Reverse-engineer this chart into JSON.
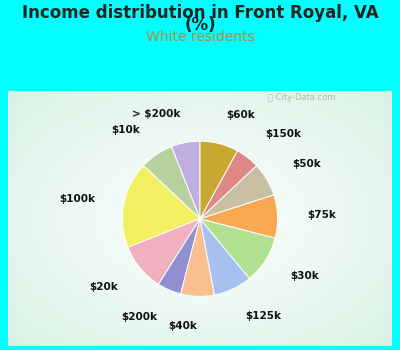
{
  "title_line1": "Income distribution in Front Royal, VA",
  "title_line2": "(%)",
  "subtitle": "White residents",
  "title_color": "#222222",
  "subtitle_color": "#b08840",
  "outer_bg": "#00ffff",
  "chart_bg": "#e8f5f0",
  "labels": [
    "> $200k",
    "$10k",
    "$100k",
    "$20k",
    "$200k",
    "$40k",
    "$125k",
    "$30k",
    "$75k",
    "$50k",
    "$150k",
    "$60k"
  ],
  "values": [
    6,
    7,
    18,
    10,
    5,
    7,
    8,
    10,
    9,
    7,
    5,
    8
  ],
  "colors": [
    "#c0aee0",
    "#b8d0a0",
    "#f0f060",
    "#f0b0c0",
    "#9090d0",
    "#f8c090",
    "#a8c0f0",
    "#b0e090",
    "#f8a850",
    "#c8c0a0",
    "#e08888",
    "#c8a830"
  ],
  "startangle": 90,
  "label_fontsize": 7.5,
  "title_fontsize": 12,
  "subtitle_fontsize": 10,
  "label_distance": 1.38,
  "watermark": "City-Data.com"
}
